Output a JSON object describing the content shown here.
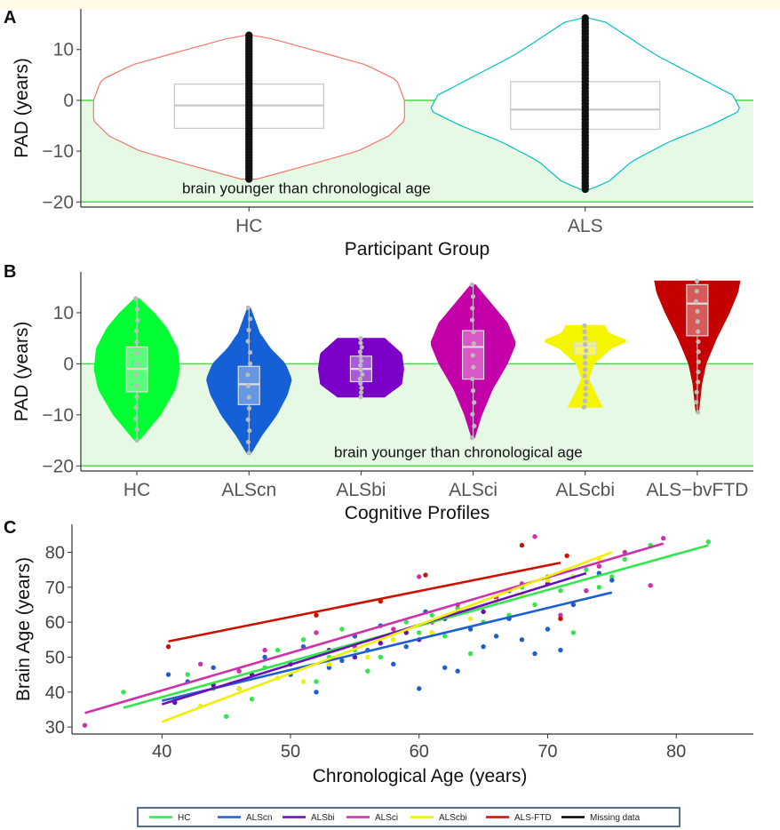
{
  "chart_data": [
    {
      "panel": "A",
      "type": "violin",
      "categories": [
        "HC",
        "ALS"
      ],
      "xlabel": "Participant Group",
      "ylabel": "PAD  (years)",
      "ylim": [
        -21,
        18
      ],
      "yticks": [
        -20,
        -10,
        0,
        10
      ],
      "annotation": "brain younger than chronological age",
      "shaded_region": [
        -20,
        0
      ],
      "colors": {
        "HC": "#f8766d",
        "ALS": "#00bfc4",
        "shade": "#e5f9e5",
        "line": "#4cd94c",
        "box": "#c8c8c8",
        "points": "#111111"
      },
      "groups": [
        {
          "name": "HC",
          "min": -15.5,
          "q1": -5.5,
          "median": -1,
          "q3": 3.2,
          "max": 12.8,
          "density": [
            [
              -15.5,
              0.05
            ],
            [
              -13,
              0.35
            ],
            [
              -10,
              0.7
            ],
            [
              -7,
              0.9
            ],
            [
              -4,
              1.0
            ],
            [
              0,
              1.0
            ],
            [
              4,
              0.95
            ],
            [
              7,
              0.75
            ],
            [
              10,
              0.4
            ],
            [
              12.5,
              0.1
            ],
            [
              12.8,
              0.02
            ]
          ]
        },
        {
          "name": "ALS",
          "min": -17.5,
          "q1": -5.7,
          "median": -1.8,
          "q3": 3.7,
          "max": 16.2,
          "density": [
            [
              -17.5,
              0.03
            ],
            [
              -16,
              0.15
            ],
            [
              -12,
              0.3
            ],
            [
              -8,
              0.55
            ],
            [
              -5,
              0.8
            ],
            [
              -2,
              1.0
            ],
            [
              1,
              0.95
            ],
            [
              5,
              0.7
            ],
            [
              9,
              0.45
            ],
            [
              13,
              0.25
            ],
            [
              16,
              0.1
            ],
            [
              16.2,
              0.02
            ]
          ]
        }
      ]
    },
    {
      "panel": "B",
      "type": "violin",
      "categories": [
        "HC",
        "ALScn",
        "ALSbi",
        "ALSci",
        "ALScbi",
        "ALS−bvFTD"
      ],
      "xlabel": "Cognitive Profiles",
      "ylabel": "PAD  (years)",
      "ylim": [
        -21,
        18
      ],
      "yticks": [
        -20,
        -10,
        0,
        10
      ],
      "annotation": "brain younger than chronological age",
      "shaded_region": [
        -20,
        0
      ],
      "groups": [
        {
          "name": "HC",
          "color": "#00ff33",
          "min": -15,
          "q1": -5.5,
          "median": -1,
          "q3": 3.3,
          "max": 12.8,
          "density": [
            [
              -15,
              0.05
            ],
            [
              -10,
              0.55
            ],
            [
              -5,
              0.9
            ],
            [
              -1,
              1.0
            ],
            [
              3,
              0.95
            ],
            [
              7,
              0.7
            ],
            [
              10,
              0.4
            ],
            [
              12.8,
              0.05
            ]
          ]
        },
        {
          "name": "ALScn",
          "color": "#1560d6",
          "min": -17.5,
          "q1": -8,
          "median": -4,
          "q3": -0.5,
          "max": 11,
          "density": [
            [
              -17.5,
              0.05
            ],
            [
              -14,
              0.3
            ],
            [
              -10,
              0.65
            ],
            [
              -6,
              0.9
            ],
            [
              -3,
              1.0
            ],
            [
              0,
              0.85
            ],
            [
              3,
              0.5
            ],
            [
              6,
              0.25
            ],
            [
              11,
              0.03
            ]
          ]
        },
        {
          "name": "ALSbi",
          "color": "#7b00c8",
          "min": -6.5,
          "q1": -3.5,
          "median": -1,
          "q3": 1.5,
          "max": 5,
          "density": [
            [
              -6.5,
              0.55
            ],
            [
              -4,
              0.95
            ],
            [
              -1,
              1.0
            ],
            [
              2,
              0.95
            ],
            [
              5,
              0.55
            ]
          ]
        },
        {
          "name": "ALSci",
          "color": "#c400a8",
          "min": -14.5,
          "q1": -3,
          "median": 3.3,
          "q3": 6.5,
          "max": 15.5,
          "density": [
            [
              -14.5,
              0.03
            ],
            [
              -10,
              0.2
            ],
            [
              -5,
              0.45
            ],
            [
              0,
              0.8
            ],
            [
              4,
              1.0
            ],
            [
              8,
              0.8
            ],
            [
              12,
              0.4
            ],
            [
              15.5,
              0.05
            ]
          ]
        },
        {
          "name": "ALScbi",
          "color": "#f5f500",
          "min": -8.5,
          "q1": 1.8,
          "median": 3.5,
          "q3": 4.2,
          "max": 7.5,
          "density": [
            [
              -8.5,
              0.4
            ],
            [
              -6,
              0.25
            ],
            [
              -3,
              0.08
            ],
            [
              0,
              0.2
            ],
            [
              3,
              0.6
            ],
            [
              4.5,
              1.0
            ],
            [
              6,
              0.55
            ],
            [
              7.5,
              0.45
            ]
          ]
        },
        {
          "name": "ALS−bvFTD",
          "color": "#c40000",
          "min": -9.5,
          "q1": 5.5,
          "median": 11.8,
          "q3": 15.5,
          "max": 16.2,
          "density": [
            [
              -9.5,
              0.03
            ],
            [
              -4,
              0.1
            ],
            [
              0,
              0.2
            ],
            [
              5,
              0.45
            ],
            [
              10,
              0.75
            ],
            [
              14,
              0.95
            ],
            [
              16.2,
              1.0
            ]
          ]
        }
      ]
    },
    {
      "panel": "C",
      "type": "scatter",
      "xlabel": "Chronological Age (years)",
      "ylabel": "Brain Age (years)",
      "xlim": [
        33,
        86
      ],
      "ylim": [
        28,
        88
      ],
      "xticks": [
        40,
        50,
        60,
        70,
        80
      ],
      "yticks": [
        30,
        40,
        50,
        60,
        70,
        80
      ],
      "series": [
        {
          "name": "HC",
          "color": "#33e64d",
          "fit": [
            [
              37,
              35.5
            ],
            [
              82.5,
              82
            ]
          ],
          "points": [
            [
              37,
              40
            ],
            [
              41,
              38
            ],
            [
              42,
              45
            ],
            [
              44,
              41
            ],
            [
              45,
              33
            ],
            [
              47,
              38
            ],
            [
              48,
              47
            ],
            [
              49,
              52
            ],
            [
              50,
              48
            ],
            [
              51,
              55
            ],
            [
              52,
              43
            ],
            [
              53,
              50
            ],
            [
              54,
              58
            ],
            [
              55,
              52
            ],
            [
              56,
              46
            ],
            [
              57,
              50
            ],
            [
              58,
              55
            ],
            [
              59,
              60
            ],
            [
              60,
              57
            ],
            [
              61,
              62
            ],
            [
              62,
              56
            ],
            [
              63,
              64
            ],
            [
              64,
              51
            ],
            [
              65,
              60
            ],
            [
              66,
              67
            ],
            [
              67,
              62
            ],
            [
              68,
              70
            ],
            [
              69,
              65
            ],
            [
              70,
              73
            ],
            [
              71,
              69
            ],
            [
              72,
              57
            ],
            [
              73,
              75
            ],
            [
              74,
              70
            ],
            [
              75,
              73
            ],
            [
              76,
              78
            ],
            [
              78,
              82
            ],
            [
              82.5,
              83
            ]
          ]
        },
        {
          "name": "ALScn",
          "color": "#1e5fd0",
          "fit": [
            [
              40,
              37.5
            ],
            [
              75,
              68.5
            ]
          ],
          "points": [
            [
              40.5,
              45
            ],
            [
              42,
              43
            ],
            [
              44,
              47
            ],
            [
              46,
              41
            ],
            [
              48,
              50
            ],
            [
              50,
              45
            ],
            [
              51,
              53
            ],
            [
              52,
              40
            ],
            [
              53,
              47
            ],
            [
              54,
              49
            ],
            [
              55,
              56
            ],
            [
              56,
              52
            ],
            [
              57,
              59
            ],
            [
              58,
              48
            ],
            [
              59,
              53
            ],
            [
              60,
              41
            ],
            [
              60.5,
              63
            ],
            [
              61,
              57
            ],
            [
              62,
              47
            ],
            [
              63,
              46
            ],
            [
              64,
              58
            ],
            [
              65,
              53
            ],
            [
              66,
              56
            ],
            [
              67,
              61
            ],
            [
              68,
              55
            ],
            [
              69,
              51
            ],
            [
              70,
              58
            ],
            [
              71,
              52
            ],
            [
              72,
              65
            ],
            [
              73,
              69
            ],
            [
              74,
              74
            ],
            [
              75,
              72
            ]
          ]
        },
        {
          "name": "ALSbi",
          "color": "#6a0fb8",
          "fit": [
            [
              40,
              36.5
            ],
            [
              73,
              74
            ]
          ],
          "points": [
            [
              41,
              37
            ],
            [
              44,
              42
            ],
            [
              47,
              45
            ],
            [
              50,
              48
            ],
            [
              53,
              52
            ],
            [
              55,
              50
            ],
            [
              57,
              54
            ],
            [
              59,
              57
            ],
            [
              60,
              55
            ],
            [
              62,
              61
            ],
            [
              63,
              63
            ],
            [
              65,
              63
            ],
            [
              67,
              69
            ],
            [
              70,
              71
            ],
            [
              72,
              73
            ]
          ]
        },
        {
          "name": "ALSci",
          "color": "#cc33aa",
          "fit": [
            [
              34,
              34
            ],
            [
              79,
              82.5
            ]
          ],
          "points": [
            [
              34,
              30.5
            ],
            [
              43,
              48
            ],
            [
              46,
              46
            ],
            [
              48,
              52
            ],
            [
              52,
              57
            ],
            [
              55,
              53
            ],
            [
              58,
              58
            ],
            [
              60,
              73
            ],
            [
              61,
              60
            ],
            [
              63,
              65
            ],
            [
              66,
              67
            ],
            [
              68,
              71
            ],
            [
              69,
              84.5
            ],
            [
              71,
              62
            ],
            [
              73,
              69
            ],
            [
              74,
              76
            ],
            [
              76,
              80
            ],
            [
              78,
              70.5
            ],
            [
              79,
              84
            ]
          ]
        },
        {
          "name": "ALScbi",
          "color": "#f0f000",
          "fit": [
            [
              40,
              31.5
            ],
            [
              75,
              80
            ]
          ],
          "points": [
            [
              43,
              36
            ],
            [
              46,
              41
            ],
            [
              49,
              44
            ],
            [
              51,
              43
            ],
            [
              53,
              48
            ],
            [
              56,
              50
            ],
            [
              58,
              55
            ],
            [
              61,
              57
            ],
            [
              64,
              61
            ],
            [
              66,
              66
            ],
            [
              68,
              68
            ],
            [
              70,
              72
            ],
            [
              72,
              73
            ],
            [
              74,
              78
            ]
          ]
        },
        {
          "name": "ALS-FTD",
          "color": "#cc1100",
          "fit": [
            [
              40.5,
              54.5
            ],
            [
              71,
              77
            ]
          ],
          "points": [
            [
              40.5,
              53
            ],
            [
              52,
              62
            ],
            [
              57,
              66
            ],
            [
              60.5,
              73.5
            ],
            [
              68,
              82
            ],
            [
              71,
              61
            ],
            [
              71.5,
              79
            ]
          ]
        }
      ]
    }
  ],
  "legend": {
    "items": [
      {
        "label": "HC",
        "color": "#33e64d"
      },
      {
        "label": "ALScn",
        "color": "#1e5fd0"
      },
      {
        "label": "ALSbi",
        "color": "#6a0fb8"
      },
      {
        "label": "ALSci",
        "color": "#cc33aa"
      },
      {
        "label": "ALScbi",
        "color": "#f0f000"
      },
      {
        "label": "ALS-FTD",
        "color": "#cc1100"
      },
      {
        "label": "Missing data",
        "color": "#000000"
      }
    ],
    "border_color": "#1e3a6e"
  },
  "panel_labels": [
    "A",
    "B",
    "C"
  ]
}
